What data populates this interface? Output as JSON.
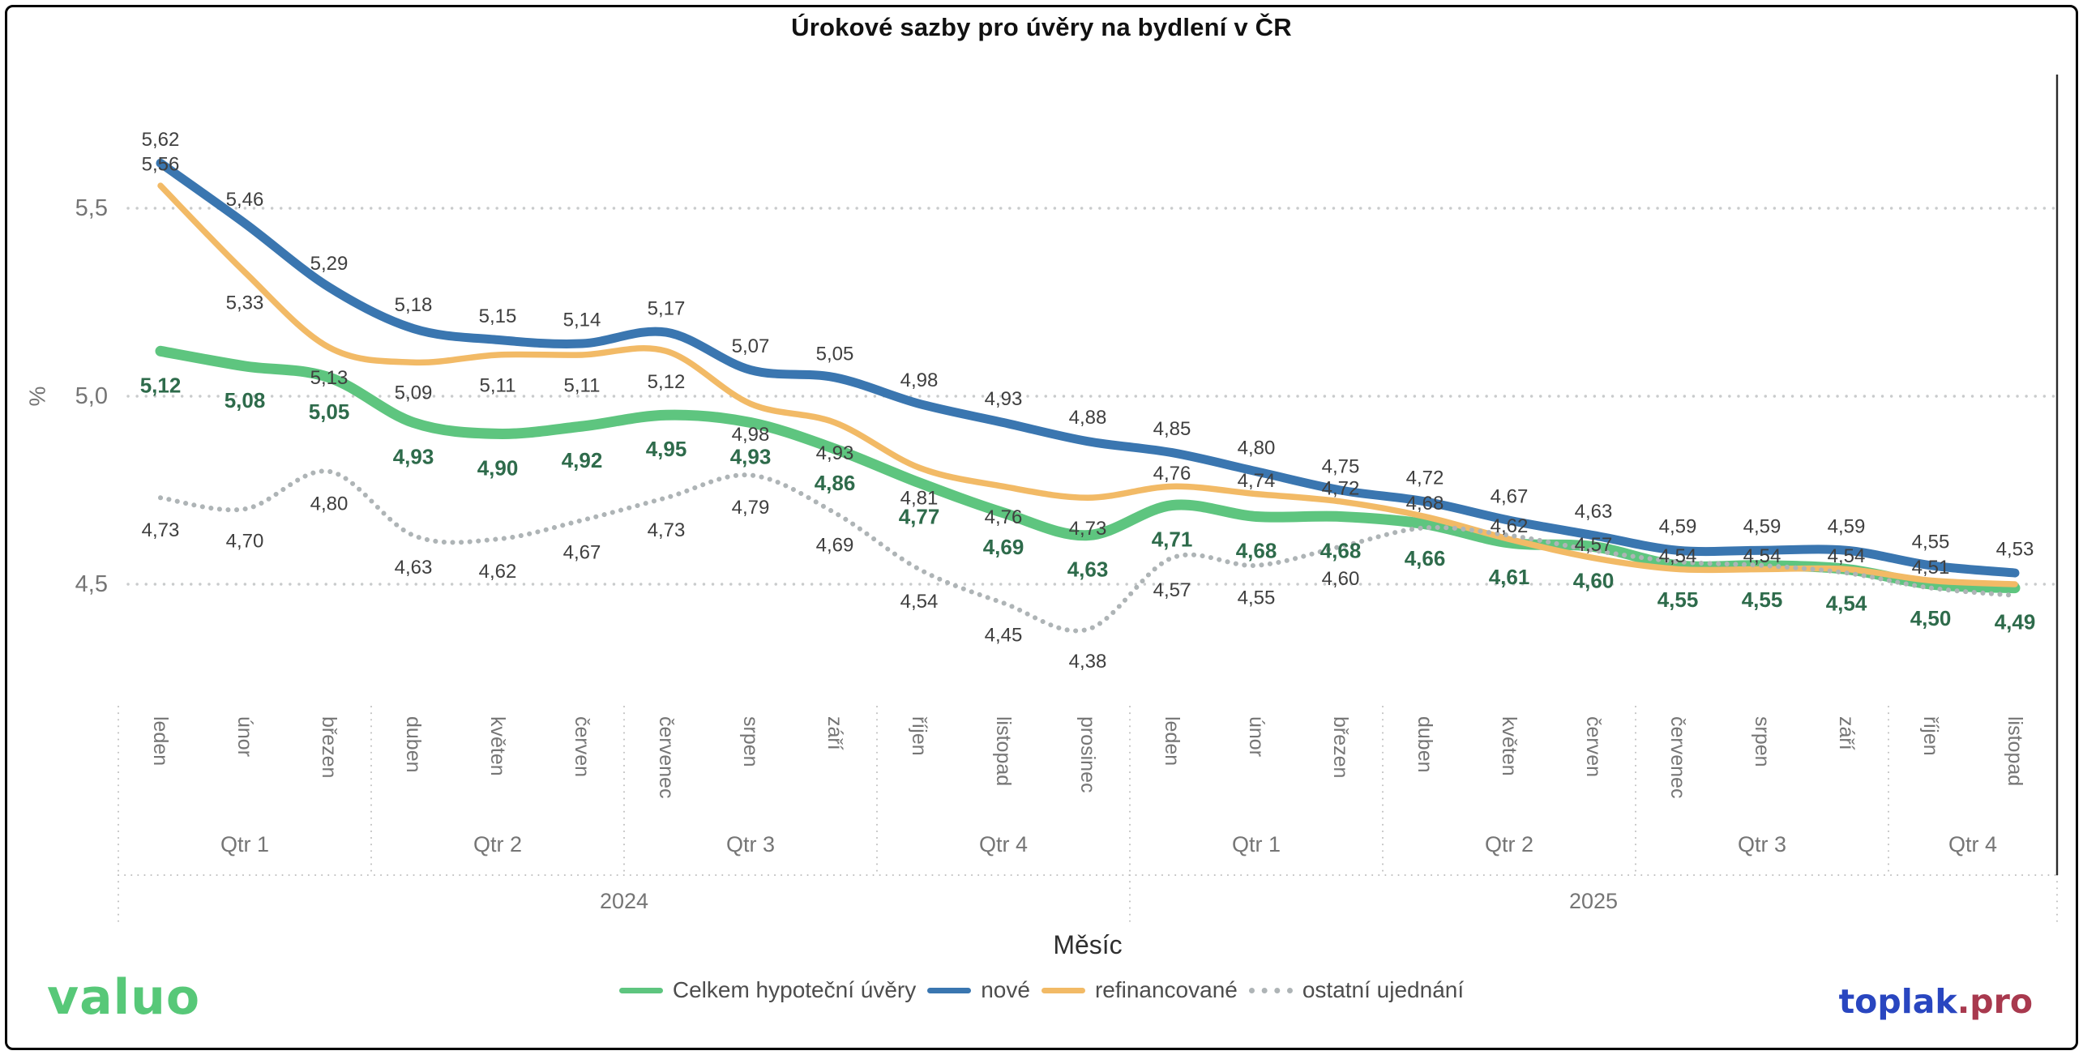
{
  "title": "Úrokové sazby pro úvěry na bydlení v ČR",
  "y_axis": {
    "label": "%",
    "ticks": [
      "5,5",
      "5,0",
      "4,5"
    ],
    "tick_values": [
      5.5,
      5.0,
      4.5
    ]
  },
  "x_axis": {
    "label": "Měsíc",
    "months": [
      "leden",
      "únor",
      "březen",
      "duben",
      "květen",
      "červen",
      "červenec",
      "srpen",
      "září",
      "říjen",
      "listopad",
      "prosinec",
      "leden",
      "únor",
      "březen",
      "duben",
      "květen",
      "červen",
      "červenec",
      "srpen",
      "září",
      "říjen",
      "listopad"
    ],
    "quarters": [
      {
        "label": "Qtr 1",
        "span": 3
      },
      {
        "label": "Qtr 2",
        "span": 3
      },
      {
        "label": "Qtr 3",
        "span": 3
      },
      {
        "label": "Qtr 4",
        "span": 3
      },
      {
        "label": "Qtr 1",
        "span": 3
      },
      {
        "label": "Qtr 2",
        "span": 3
      },
      {
        "label": "Qtr 3",
        "span": 3
      },
      {
        "label": "Qtr 4",
        "span": 2
      }
    ],
    "years": [
      {
        "label": "2024",
        "span": 12
      },
      {
        "label": "2025",
        "span": 11
      }
    ]
  },
  "legend": {
    "items": [
      {
        "label": "Celkem hypoteční úvěry",
        "color": "#5EC57F",
        "style": "solid"
      },
      {
        "label": "nové",
        "color": "#3A76B0",
        "style": "solid"
      },
      {
        "label": "refinancované",
        "color": "#F2BA66",
        "style": "solid"
      },
      {
        "label": "ostatní ujednání",
        "color": "#AEB4B6",
        "style": "dotted"
      }
    ]
  },
  "footer": {
    "left_logo": "valuo",
    "right_logo_primary": "toplak",
    "right_logo_suffix": ".pro"
  },
  "colors": {
    "grid": "#C9CBCC",
    "separator": "#BFBFBF",
    "axis_text": "#757575",
    "data_label": "#3F3F3F",
    "green_label": "#2E6B4B",
    "plot_right_edge": "#2B2B2B"
  },
  "chart_data": {
    "type": "line",
    "title": "Úrokové sazby pro úvěry na bydlení v ČR",
    "xlabel": "Měsíc",
    "ylabel": "%",
    "ylim": [
      4.2,
      5.75
    ],
    "gridlines": [
      5.5,
      5.0,
      4.5
    ],
    "decimal_separator": ",",
    "x_months": [
      "leden 2024",
      "únor 2024",
      "březen 2024",
      "duben 2024",
      "květen 2024",
      "červen 2024",
      "červenec 2024",
      "srpen 2024",
      "září 2024",
      "říjen 2024",
      "listopad 2024",
      "prosinec 2024",
      "leden 2025",
      "únor 2025",
      "březen 2025",
      "duben 2025",
      "květen 2025",
      "červen 2025",
      "červenec 2025",
      "srpen 2025",
      "září 2025",
      "říjen 2025",
      "listopad 2025"
    ],
    "series": [
      {
        "name": "Celkem hypoteční úvěry",
        "color": "#5EC57F",
        "style": "solid",
        "width": 13,
        "label_color": "#2E6B4B",
        "label_bold": true,
        "values": [
          5.12,
          5.08,
          5.05,
          4.93,
          4.9,
          4.92,
          4.95,
          4.93,
          4.86,
          4.77,
          4.69,
          4.63,
          4.71,
          4.68,
          4.68,
          4.66,
          4.61,
          4.6,
          4.55,
          4.55,
          4.54,
          4.5,
          4.49
        ],
        "unlabeled": []
      },
      {
        "name": "nové",
        "color": "#3A76B0",
        "style": "solid",
        "width": 11,
        "label_color": "#3F3F3F",
        "label_bold": false,
        "values": [
          5.62,
          5.46,
          5.29,
          5.18,
          5.15,
          5.14,
          5.17,
          5.07,
          5.05,
          4.98,
          4.93,
          4.88,
          4.85,
          4.8,
          4.75,
          4.72,
          4.67,
          4.63,
          4.59,
          4.59,
          4.59,
          4.55,
          4.53
        ],
        "unlabeled": []
      },
      {
        "name": "refinancované",
        "color": "#F2BA66",
        "style": "solid",
        "width": 7.5,
        "label_color": "#3F3F3F",
        "label_bold": false,
        "values": [
          5.56,
          5.33,
          5.13,
          5.09,
          5.11,
          5.11,
          5.12,
          4.98,
          4.93,
          4.81,
          4.76,
          4.73,
          4.76,
          4.74,
          4.72,
          4.68,
          4.62,
          4.57,
          4.54,
          4.54,
          4.54,
          4.51,
          4.5
        ],
        "unlabeled": [
          22
        ]
      },
      {
        "name": "ostatní ujednání",
        "color": "#AEB4B6",
        "style": "dotted",
        "width": 6,
        "label_color": "#3F3F3F",
        "label_bold": false,
        "values": [
          4.73,
          4.7,
          4.8,
          4.63,
          4.62,
          4.67,
          4.73,
          4.79,
          4.69,
          4.54,
          4.45,
          4.38,
          4.57,
          4.55,
          4.6,
          4.65,
          4.63,
          4.59,
          4.56,
          4.55,
          4.53,
          4.49,
          4.47
        ],
        "unlabeled": [
          15,
          16,
          17,
          18,
          19,
          20,
          21,
          22
        ]
      }
    ]
  }
}
